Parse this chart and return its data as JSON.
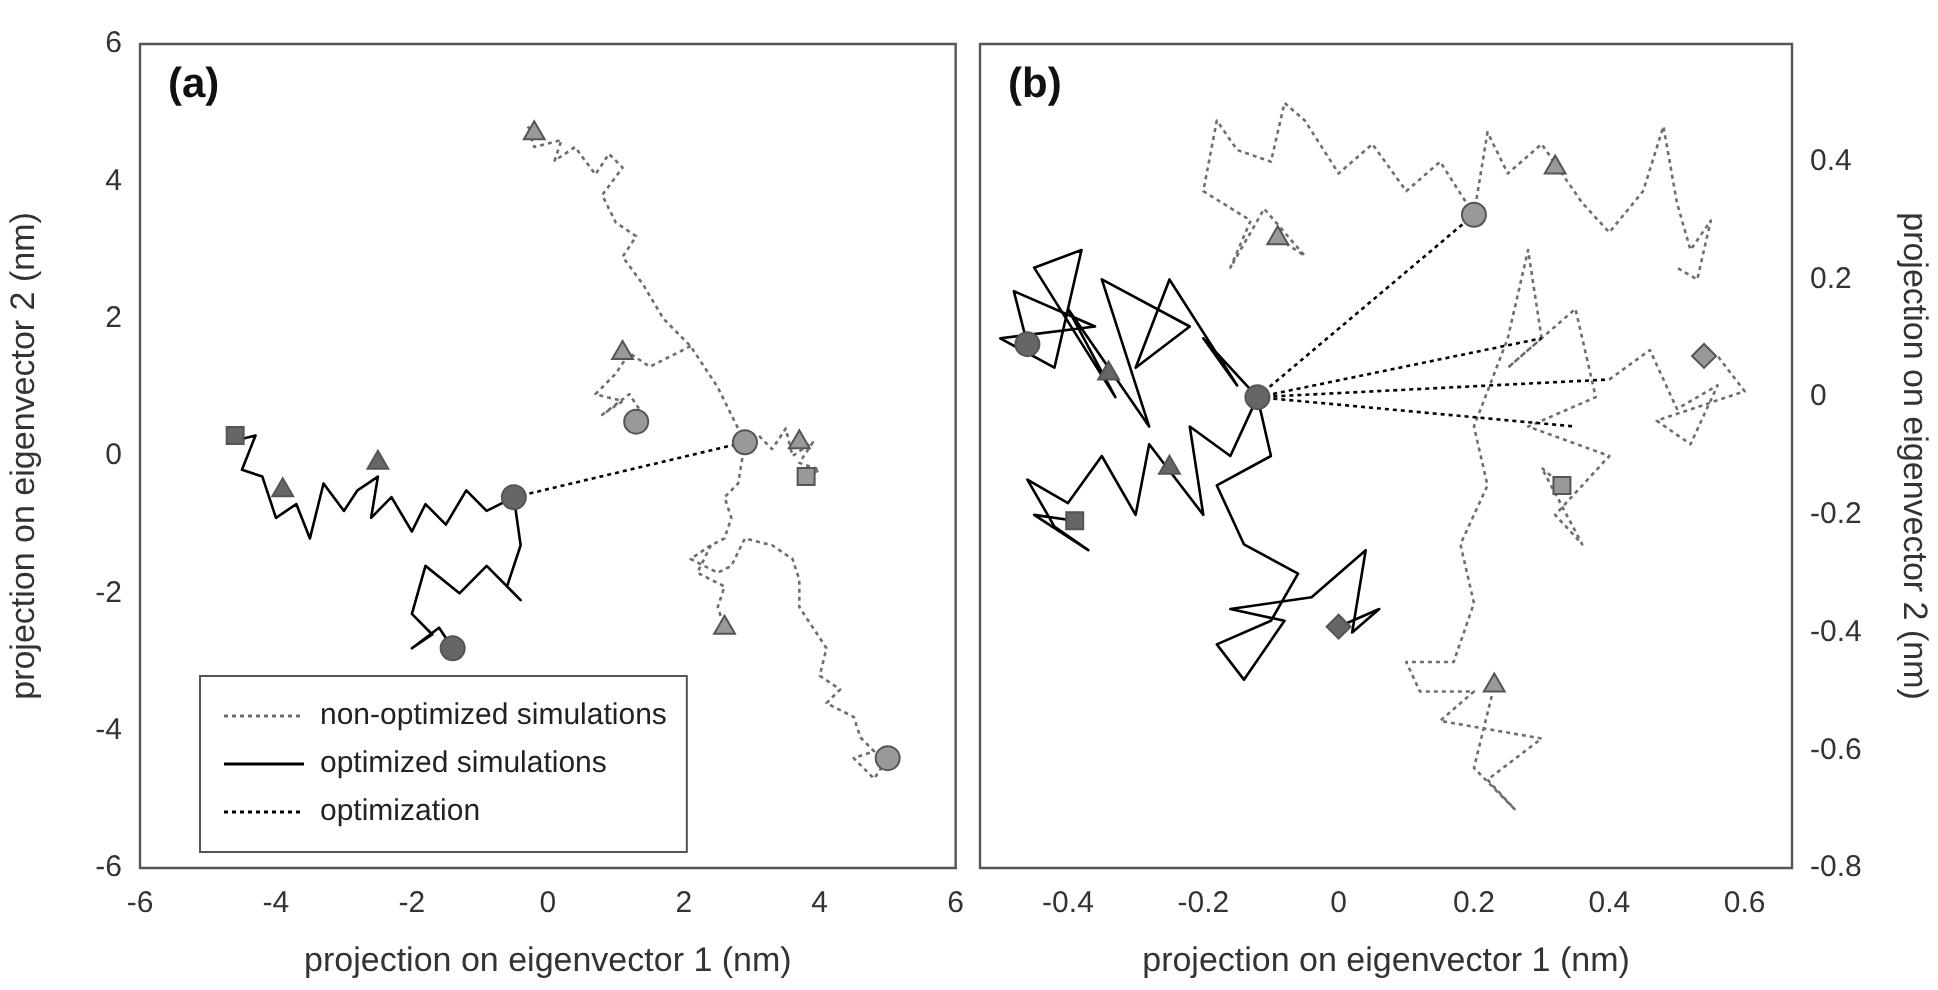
{
  "chart_data": [
    {
      "type": "line",
      "annotations": [
        "(a)"
      ],
      "xlabel": "projection on eigenvector 1 (nm)",
      "ylabel": "projection on eigenvector 2 (nm)",
      "xlim": [
        -6,
        6
      ],
      "xticks": [
        -6,
        -4,
        -2,
        0,
        2,
        4,
        6
      ],
      "ylim": [
        -6,
        6
      ],
      "yticks": [
        -6,
        -4,
        -2,
        0,
        2,
        4,
        6
      ],
      "legend": "bottom left",
      "series": [
        {
          "type": "line",
          "name": "non-optimized simulations",
          "color": "#6e6e6e",
          "line_style": "dotted",
          "marker": "none",
          "x": [
            2.9,
            2.7,
            2.5,
            2.3,
            2.1,
            1.8,
            1.7,
            1.4,
            1.1,
            1.3,
            1.0,
            0.8,
            1.1,
            0.9,
            0.7,
            0.4,
            0.1,
            0.2,
            -0.2,
            -0.3,
            -0.2,
            null,
            2.1,
            1.5,
            1.2,
            1.0,
            0.7,
            1.1,
            0.8,
            1.2,
            1.4,
            1.3,
            null,
            2.9,
            3.1,
            3.3,
            3.5,
            3.6,
            3.9,
            3.7,
            4.0,
            3.8,
            null,
            2.9,
            2.8,
            2.6,
            2.7,
            2.6,
            2.4,
            2.1,
            2.5,
            2.7,
            2.9,
            3.3,
            3.6,
            3.7,
            3.7,
            3.9,
            4.1,
            4.0,
            4.3,
            4.1,
            4.5,
            4.6,
            4.8,
            4.5,
            4.8,
            5.0,
            null,
            2.4,
            2.2,
            2.6,
            2.5,
            2.6
          ],
          "values": [
            0.2,
            0.6,
            1.0,
            1.3,
            1.6,
            1.9,
            2.0,
            2.5,
            2.9,
            3.2,
            3.4,
            3.8,
            4.2,
            4.4,
            4.1,
            4.5,
            4.3,
            4.6,
            4.5,
            4.8,
            4.7,
            null,
            1.6,
            1.3,
            1.5,
            1.2,
            0.9,
            0.8,
            0.6,
            0.9,
            0.6,
            0.5,
            null,
            0.2,
            0.3,
            0.1,
            0.4,
            0.0,
            0.2,
            -0.1,
            -0.2,
            -0.3,
            null,
            0.2,
            -0.4,
            -0.6,
            -0.9,
            -1.2,
            -1.3,
            -1.5,
            -1.7,
            -1.6,
            -1.2,
            -1.3,
            -1.5,
            -1.8,
            -2.2,
            -2.5,
            -2.8,
            -3.2,
            -3.4,
            -3.6,
            -3.8,
            -4.1,
            -4.3,
            -4.4,
            -4.7,
            -4.4,
            null,
            -1.3,
            -1.7,
            -1.9,
            -2.2,
            -2.5
          ]
        },
        {
          "type": "line",
          "name": "optimized simulations",
          "color": "#000000",
          "line_style": "solid",
          "marker": "none",
          "x": [
            -0.5,
            -0.9,
            -1.2,
            -1.5,
            -1.8,
            -2.0,
            -2.3,
            -2.6,
            -2.5,
            -2.8,
            -3.0,
            -3.3,
            -3.5,
            -3.7,
            -4.0,
            -4.2,
            -4.5,
            -4.3,
            -4.7,
            -4.6,
            null,
            -0.5,
            -0.4,
            -0.6,
            -0.4,
            -0.9,
            -1.3,
            -1.8,
            -2.0,
            -1.7,
            -2.0,
            -1.6,
            -1.4
          ],
          "values": [
            -0.6,
            -0.8,
            -0.5,
            -1.0,
            -0.7,
            -1.1,
            -0.6,
            -0.9,
            -0.3,
            -0.5,
            -0.8,
            -0.4,
            -1.2,
            -0.7,
            -0.9,
            -0.3,
            -0.2,
            0.3,
            0.2,
            0.3,
            null,
            -0.6,
            -1.3,
            -1.9,
            -2.1,
            -1.6,
            -2.0,
            -1.6,
            -2.3,
            -2.6,
            -2.8,
            -2.5,
            -2.8
          ]
        },
        {
          "type": "line",
          "name": "optimization",
          "color": "#000000",
          "line_style": "dotted",
          "marker": "none",
          "x": [
            -0.5,
            2.9
          ],
          "values": [
            -0.6,
            0.2
          ]
        },
        {
          "type": "scatter",
          "color": "#999999",
          "marker": "circle",
          "x": [
            2.9,
            1.3,
            5.0
          ],
          "values": [
            0.2,
            0.5,
            -4.4
          ]
        },
        {
          "type": "scatter",
          "color": "#999999",
          "marker": "square",
          "x": [
            3.8
          ],
          "values": [
            -0.3
          ]
        },
        {
          "type": "scatter",
          "color": "#999999",
          "marker": "triangle",
          "x": [
            1.1,
            2.6,
            -0.2,
            3.7
          ],
          "values": [
            1.5,
            -2.5,
            4.7,
            0.2
          ]
        },
        {
          "type": "scatter",
          "color": "#666666",
          "marker": "circle",
          "x": [
            -0.5,
            -1.4
          ],
          "values": [
            -0.6,
            -2.8
          ]
        },
        {
          "type": "scatter",
          "color": "#666666",
          "marker": "square",
          "x": [
            -4.6
          ],
          "values": [
            0.3
          ]
        },
        {
          "type": "scatter",
          "color": "#666666",
          "marker": "triangle",
          "x": [
            -2.5,
            -3.9
          ],
          "values": [
            -0.1,
            -0.5
          ]
        }
      ]
    },
    {
      "type": "line",
      "annotations": [
        "(b)"
      ],
      "xlabel": "projection on eigenvector 1 (nm)",
      "y2label": "projection on eigenvector 2 (nm)",
      "xlim": [
        -0.53,
        0.67
      ],
      "xticks": [
        -0.4,
        -0.2,
        0,
        0.2,
        0.4,
        0.6
      ],
      "y2lim": [
        -0.8,
        0.6
      ],
      "y2ticks": [
        -0.8,
        -0.6,
        -0.4,
        -0.2,
        0,
        0.2,
        0.4
      ],
      "series": [
        {
          "type": "line",
          "color": "#6e6e6e",
          "line_style": "dotted",
          "marker": "none",
          "axis": "y2",
          "x": [
            0.2,
            0.15,
            0.1,
            0.05,
            0.0,
            -0.05,
            -0.08,
            -0.1,
            -0.15,
            -0.18,
            -0.2,
            -0.13,
            -0.16,
            -0.11,
            -0.05,
            -0.09,
            null,
            0.2,
            0.22,
            0.25,
            0.3,
            0.33,
            0.36,
            0.4,
            0.45,
            0.48,
            0.5,
            0.52,
            0.55,
            0.53,
            0.5,
            null,
            0.4,
            0.46,
            0.5,
            0.56,
            0.52,
            0.47,
            0.6,
            0.56,
            0.54,
            null,
            0.3,
            0.25,
            0.35,
            0.38,
            0.28,
            0.4,
            0.32,
            0.36,
            0.3,
            0.33,
            null,
            0.3,
            0.28,
            0.25,
            0.2,
            0.22,
            0.18,
            0.2,
            0.17,
            0.1,
            0.12,
            0.2,
            0.15,
            0.3,
            0.22,
            0.26,
            0.2,
            0.23
          ],
          "values": [
            0.31,
            0.4,
            0.35,
            0.43,
            0.38,
            0.47,
            0.5,
            0.4,
            0.42,
            0.47,
            0.35,
            0.3,
            0.22,
            0.32,
            0.24,
            0.27,
            null,
            0.31,
            0.45,
            0.38,
            0.43,
            0.38,
            0.33,
            0.28,
            0.35,
            0.46,
            0.33,
            0.25,
            0.3,
            0.2,
            0.22,
            null,
            0.03,
            0.08,
            -0.02,
            0.02,
            -0.08,
            -0.04,
            0.01,
            0.07,
            0.07,
            null,
            0.1,
            0.05,
            0.15,
            0.0,
            -0.05,
            -0.1,
            -0.2,
            -0.25,
            -0.12,
            -0.15,
            null,
            0.1,
            0.25,
            0.1,
            -0.05,
            -0.15,
            -0.25,
            -0.35,
            -0.45,
            -0.45,
            -0.5,
            -0.5,
            -0.55,
            -0.58,
            -0.65,
            -0.7,
            -0.63,
            -0.49
          ]
        },
        {
          "type": "line",
          "color": "#000000",
          "line_style": "solid",
          "marker": "none",
          "axis": "y2",
          "x": [
            -0.12,
            -0.2,
            -0.15,
            -0.25,
            -0.3,
            -0.22,
            -0.35,
            -0.28,
            -0.4,
            -0.33,
            -0.45,
            -0.38,
            -0.42,
            -0.5,
            -0.36,
            -0.48,
            -0.46,
            null,
            -0.12,
            -0.16,
            -0.22,
            -0.2,
            -0.28,
            -0.3,
            -0.35,
            -0.4,
            -0.46,
            -0.42,
            -0.37,
            -0.45,
            -0.39,
            null,
            -0.12,
            -0.1,
            -0.18,
            -0.14,
            -0.06,
            -0.1,
            -0.18,
            -0.14,
            -0.08,
            -0.16,
            -0.04,
            0.04,
            0.02,
            0.06,
            0.0
          ],
          "values": [
            0.0,
            0.1,
            0.02,
            0.2,
            0.05,
            0.12,
            0.2,
            -0.05,
            0.15,
            0.0,
            0.22,
            0.25,
            0.05,
            0.1,
            0.12,
            0.18,
            0.09,
            null,
            0.0,
            -0.1,
            -0.05,
            -0.2,
            -0.08,
            -0.2,
            -0.1,
            -0.18,
            -0.14,
            -0.22,
            -0.26,
            -0.2,
            -0.21,
            null,
            0.0,
            -0.1,
            -0.15,
            -0.25,
            -0.3,
            -0.38,
            -0.42,
            -0.48,
            -0.38,
            -0.36,
            -0.34,
            -0.26,
            -0.4,
            -0.36,
            -0.39
          ]
        },
        {
          "type": "line",
          "color": "#000000",
          "line_style": "dotted",
          "marker": "none",
          "axis": "y2",
          "x": [
            -0.12,
            0.2
          ],
          "values": [
            0.0,
            0.31
          ]
        },
        {
          "type": "line",
          "color": "#000000",
          "line_style": "dotted",
          "marker": "none",
          "axis": "y2",
          "x": [
            -0.12,
            0.3
          ],
          "values": [
            0.0,
            0.1
          ]
        },
        {
          "type": "line",
          "color": "#000000",
          "line_style": "dotted",
          "marker": "none",
          "axis": "y2",
          "x": [
            -0.12,
            0.4
          ],
          "values": [
            0.0,
            0.03
          ]
        },
        {
          "type": "line",
          "color": "#000000",
          "line_style": "dotted",
          "marker": "none",
          "axis": "y2",
          "x": [
            -0.12,
            0.35
          ],
          "values": [
            0.0,
            -0.05
          ]
        },
        {
          "type": "scatter",
          "color": "#999999",
          "marker": "circle",
          "axis": "y2",
          "x": [
            0.2
          ],
          "values": [
            0.31
          ]
        },
        {
          "type": "scatter",
          "color": "#999999",
          "marker": "square",
          "axis": "y2",
          "x": [
            0.33
          ],
          "values": [
            -0.15
          ]
        },
        {
          "type": "scatter",
          "color": "#999999",
          "marker": "diamond",
          "axis": "y2",
          "x": [
            0.54
          ],
          "values": [
            0.07
          ]
        },
        {
          "type": "scatter",
          "color": "#999999",
          "marker": "triangle",
          "axis": "y2",
          "x": [
            -0.09,
            0.32,
            0.23
          ],
          "values": [
            0.27,
            0.39,
            -0.49
          ]
        },
        {
          "type": "scatter",
          "color": "#666666",
          "marker": "circle",
          "axis": "y2",
          "x": [
            -0.46,
            -0.12
          ],
          "values": [
            0.09,
            0.0
          ]
        },
        {
          "type": "scatter",
          "color": "#666666",
          "marker": "square",
          "axis": "y2",
          "x": [
            -0.39
          ],
          "values": [
            -0.21
          ]
        },
        {
          "type": "scatter",
          "color": "#666666",
          "marker": "diamond",
          "axis": "y2",
          "x": [
            0.0
          ],
          "values": [
            -0.39
          ]
        },
        {
          "type": "scatter",
          "color": "#666666",
          "marker": "triangle",
          "axis": "y2",
          "x": [
            -0.34,
            -0.25
          ],
          "values": [
            0.04,
            -0.12
          ]
        }
      ]
    }
  ]
}
